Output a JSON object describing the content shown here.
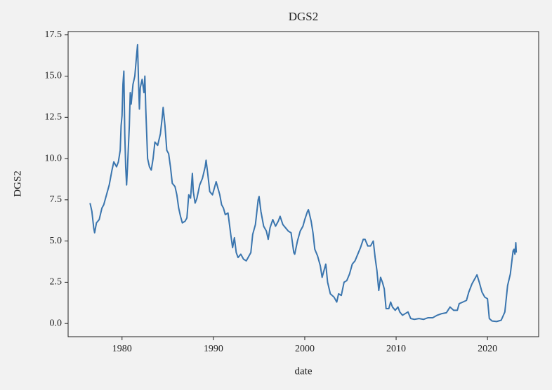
{
  "chart_data": {
    "type": "line",
    "title": "DGS2",
    "xlabel": "date",
    "ylabel": "DGS2",
    "color": "#3a75ae",
    "x": [
      1976.5,
      1976.7,
      1976.9,
      1977.0,
      1977.2,
      1977.5,
      1977.8,
      1978.0,
      1978.3,
      1978.6,
      1978.9,
      1979.1,
      1979.4,
      1979.6,
      1979.8,
      1979.9,
      1980.0,
      1980.1,
      1980.2,
      1980.3,
      1980.4,
      1980.5,
      1980.6,
      1980.8,
      1980.9,
      1981.0,
      1981.2,
      1981.4,
      1981.6,
      1981.7,
      1981.8,
      1981.9,
      1982.0,
      1982.2,
      1982.4,
      1982.5,
      1982.6,
      1982.7,
      1982.8,
      1983.0,
      1983.2,
      1983.4,
      1983.6,
      1983.9,
      1984.2,
      1984.4,
      1984.5,
      1984.7,
      1984.9,
      1985.1,
      1985.3,
      1985.5,
      1985.8,
      1986.0,
      1986.2,
      1986.4,
      1986.6,
      1986.9,
      1987.1,
      1987.3,
      1987.5,
      1987.7,
      1987.8,
      1988.0,
      1988.2,
      1988.5,
      1988.8,
      1989.1,
      1989.2,
      1989.4,
      1989.6,
      1989.9,
      1990.1,
      1990.3,
      1990.5,
      1990.7,
      1990.9,
      1991.1,
      1991.3,
      1991.6,
      1991.9,
      1992.1,
      1992.3,
      1992.5,
      1992.7,
      1993.0,
      1993.3,
      1993.6,
      1993.9,
      1994.1,
      1994.3,
      1994.6,
      1994.9,
      1995.0,
      1995.2,
      1995.5,
      1995.8,
      1996.0,
      1996.2,
      1996.5,
      1996.8,
      1997.1,
      1997.3,
      1997.6,
      1997.9,
      1998.2,
      1998.5,
      1998.8,
      1998.9,
      1999.2,
      1999.5,
      1999.8,
      2000.0,
      2000.3,
      2000.4,
      2000.7,
      2000.9,
      2001.1,
      2001.4,
      2001.7,
      2001.9,
      2002.1,
      2002.3,
      2002.5,
      2002.8,
      2003.2,
      2003.5,
      2003.7,
      2004.0,
      2004.3,
      2004.6,
      2004.9,
      2005.2,
      2005.5,
      2005.8,
      2006.1,
      2006.4,
      2006.6,
      2006.9,
      2007.2,
      2007.5,
      2007.7,
      2007.9,
      2008.1,
      2008.3,
      2008.5,
      2008.7,
      2008.9,
      2009.2,
      2009.4,
      2009.6,
      2009.9,
      2010.2,
      2010.4,
      2010.7,
      2011.0,
      2011.3,
      2011.6,
      2012.0,
      2012.5,
      2013.0,
      2013.5,
      2014.0,
      2014.5,
      2015.0,
      2015.5,
      2015.9,
      2016.3,
      2016.7,
      2016.9,
      2017.3,
      2017.7,
      2017.95,
      2018.3,
      2018.7,
      2018.85,
      2019.1,
      2019.4,
      2019.7,
      2020.0,
      2020.2,
      2020.5,
      2021.0,
      2021.5,
      2021.9,
      2022.2,
      2022.5,
      2022.8,
      2022.9,
      2023.0,
      2023.1,
      2023.15
    ],
    "values": [
      7.3,
      6.8,
      5.8,
      5.5,
      6.1,
      6.3,
      7.0,
      7.2,
      7.8,
      8.4,
      9.3,
      9.8,
      9.5,
      9.8,
      10.5,
      12.0,
      12.6,
      14.5,
      15.3,
      11.5,
      9.5,
      8.4,
      9.5,
      12.0,
      14.0,
      13.3,
      14.5,
      15.0,
      16.3,
      16.9,
      14.8,
      13.0,
      14.3,
      14.8,
      14.0,
      15.0,
      13.0,
      11.5,
      10.0,
      9.5,
      9.3,
      10.0,
      11.0,
      10.8,
      11.5,
      12.5,
      13.1,
      12.0,
      10.5,
      10.3,
      9.5,
      8.5,
      8.3,
      7.8,
      7.0,
      6.5,
      6.1,
      6.2,
      6.4,
      7.8,
      7.6,
      9.1,
      8.0,
      7.3,
      7.6,
      8.4,
      8.8,
      9.5,
      9.9,
      9.0,
      8.0,
      7.8,
      8.2,
      8.6,
      8.2,
      7.8,
      7.2,
      7.0,
      6.6,
      6.7,
      5.4,
      4.6,
      5.2,
      4.3,
      4.0,
      4.2,
      3.9,
      3.8,
      4.1,
      4.3,
      5.4,
      6.0,
      7.5,
      7.7,
      6.8,
      5.9,
      5.6,
      5.1,
      5.8,
      6.3,
      5.9,
      6.2,
      6.5,
      6.0,
      5.8,
      5.6,
      5.5,
      4.3,
      4.2,
      5.0,
      5.6,
      5.9,
      6.3,
      6.8,
      6.9,
      6.2,
      5.5,
      4.5,
      4.1,
      3.5,
      2.8,
      3.2,
      3.6,
      2.5,
      1.8,
      1.6,
      1.3,
      1.8,
      1.7,
      2.5,
      2.6,
      3.0,
      3.6,
      3.8,
      4.2,
      4.6,
      5.1,
      5.1,
      4.7,
      4.7,
      5.0,
      4.0,
      3.2,
      2.0,
      2.8,
      2.5,
      2.1,
      0.9,
      0.9,
      1.3,
      1.0,
      0.8,
      1.0,
      0.7,
      0.5,
      0.6,
      0.7,
      0.3,
      0.25,
      0.3,
      0.25,
      0.35,
      0.35,
      0.5,
      0.6,
      0.65,
      1.0,
      0.8,
      0.8,
      1.2,
      1.3,
      1.4,
      1.9,
      2.4,
      2.8,
      2.95,
      2.5,
      1.9,
      1.6,
      1.5,
      0.3,
      0.15,
      0.12,
      0.2,
      0.7,
      2.3,
      3.0,
      4.4,
      4.5,
      4.2,
      4.9,
      4.3
    ],
    "xlim": [
      1974.1,
      2025.6
    ],
    "xticks": [
      1980,
      1990,
      2000,
      2010,
      2020
    ],
    "ylim": [
      -0.8,
      17.7
    ],
    "yticks": [
      {
        "value": 0,
        "label": "0.0"
      },
      {
        "value": 2.5,
        "label": "2.5"
      },
      {
        "value": 5,
        "label": "5.0"
      },
      {
        "value": 7.5,
        "label": "7.5"
      },
      {
        "value": 10,
        "label": "10.0"
      },
      {
        "value": 12.5,
        "label": "12.5"
      },
      {
        "value": 15,
        "label": "15.0"
      },
      {
        "value": 17.5,
        "label": "17.5"
      }
    ]
  }
}
